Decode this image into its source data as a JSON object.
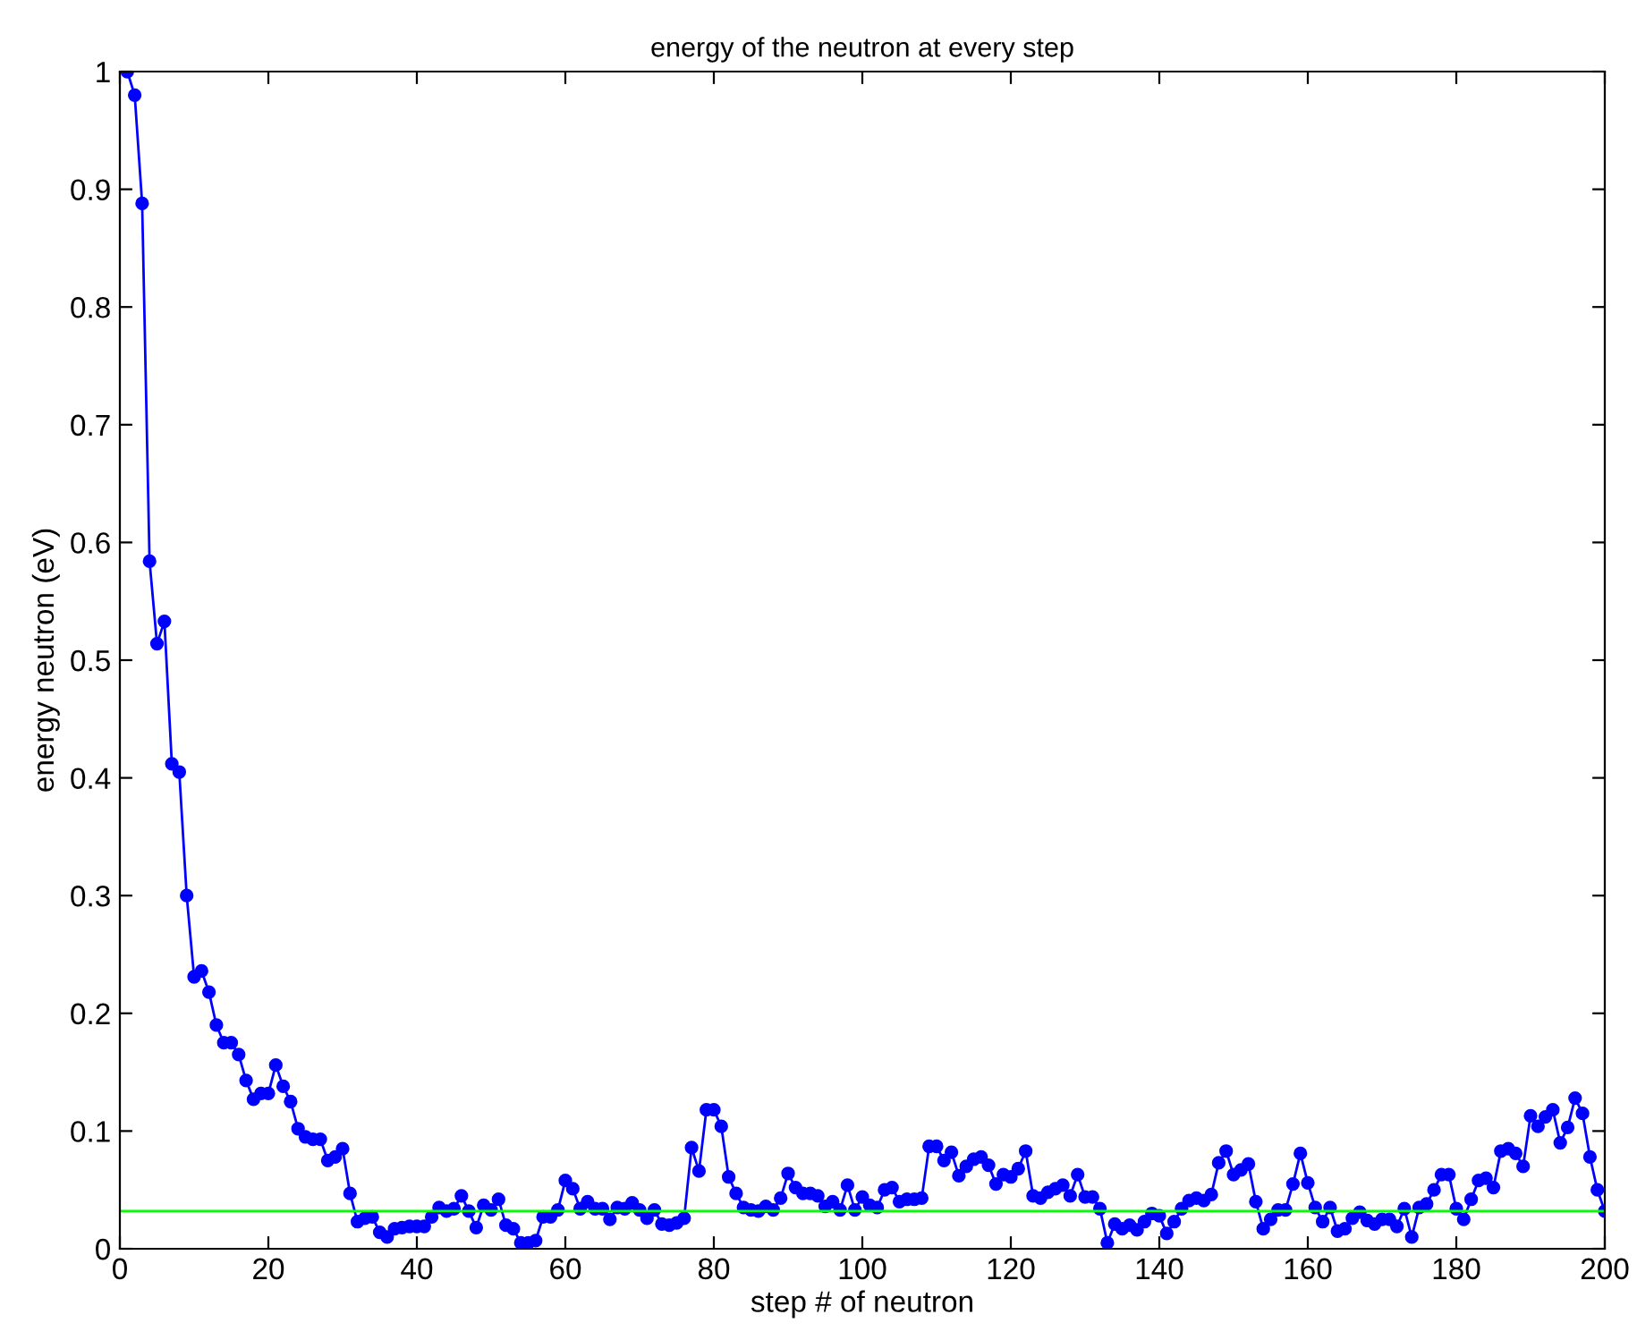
{
  "chart_data": {
    "type": "line",
    "title": "energy of the neutron at every step",
    "xlabel": "step # of neutron",
    "ylabel": "energy neutron (eV)",
    "x": [
      1,
      2,
      3,
      4,
      5,
      6,
      7,
      8,
      9,
      10,
      11,
      12,
      13,
      14,
      15,
      16,
      17,
      18,
      19,
      20,
      21,
      22,
      23,
      24,
      25,
      26,
      27,
      28,
      29,
      30,
      31,
      32,
      33,
      34,
      35,
      36,
      37,
      38,
      39,
      40,
      41,
      42,
      43,
      44,
      45,
      46,
      47,
      48,
      49,
      50,
      51,
      52,
      53,
      54,
      55,
      56,
      57,
      58,
      59,
      60,
      61,
      62,
      63,
      64,
      65,
      66,
      67,
      68,
      69,
      70,
      71,
      72,
      73,
      74,
      75,
      76,
      77,
      78,
      79,
      80,
      81,
      82,
      83,
      84,
      85,
      86,
      87,
      88,
      89,
      90,
      91,
      92,
      93,
      94,
      95,
      96,
      97,
      98,
      99,
      100,
      101,
      102,
      103,
      104,
      105,
      106,
      107,
      108,
      109,
      110,
      111,
      112,
      113,
      114,
      115,
      116,
      117,
      118,
      119,
      120,
      121,
      122,
      123,
      124,
      125,
      126,
      127,
      128,
      129,
      130,
      131,
      132,
      133,
      134,
      135,
      136,
      137,
      138,
      139,
      140,
      141,
      142,
      143,
      144,
      145,
      146,
      147,
      148,
      149,
      150,
      151,
      152,
      153,
      154,
      155,
      156,
      157,
      158,
      159,
      160,
      161,
      162,
      163,
      164,
      165,
      166,
      167,
      168,
      169,
      170,
      171,
      172,
      173,
      174,
      175,
      176,
      177,
      178,
      179,
      180,
      181,
      182,
      183,
      184,
      185,
      186,
      187,
      188,
      189,
      190,
      191,
      192,
      193,
      194,
      195,
      196,
      197,
      198,
      199,
      200
    ],
    "series": [
      {
        "color": "#0000ff",
        "values": [
          1.0,
          0.98,
          0.888,
          0.584,
          0.514,
          0.533,
          0.412,
          0.405,
          0.3,
          0.231,
          0.236,
          0.218,
          0.19,
          0.175,
          0.175,
          0.165,
          0.143,
          0.127,
          0.132,
          0.132,
          0.156,
          0.138,
          0.125,
          0.102,
          0.095,
          0.093,
          0.093,
          0.075,
          0.078,
          0.085,
          0.047,
          0.023,
          0.026,
          0.027,
          0.014,
          0.01,
          0.017,
          0.018,
          0.019,
          0.019,
          0.019,
          0.027,
          0.035,
          0.032,
          0.034,
          0.045,
          0.032,
          0.018,
          0.037,
          0.033,
          0.042,
          0.02,
          0.017,
          0.005,
          0.005,
          0.007,
          0.027,
          0.027,
          0.033,
          0.058,
          0.051,
          0.034,
          0.04,
          0.034,
          0.034,
          0.025,
          0.035,
          0.034,
          0.039,
          0.033,
          0.026,
          0.033,
          0.021,
          0.02,
          0.022,
          0.026,
          0.086,
          0.066,
          0.118,
          0.118,
          0.104,
          0.061,
          0.047,
          0.035,
          0.033,
          0.032,
          0.036,
          0.033,
          0.043,
          0.064,
          0.052,
          0.047,
          0.047,
          0.045,
          0.036,
          0.04,
          0.033,
          0.054,
          0.033,
          0.044,
          0.037,
          0.035,
          0.05,
          0.052,
          0.04,
          0.042,
          0.042,
          0.043,
          0.087,
          0.087,
          0.075,
          0.082,
          0.062,
          0.07,
          0.076,
          0.078,
          0.071,
          0.055,
          0.063,
          0.061,
          0.068,
          0.083,
          0.045,
          0.043,
          0.048,
          0.051,
          0.054,
          0.045,
          0.063,
          0.044,
          0.044,
          0.034,
          0.005,
          0.021,
          0.017,
          0.02,
          0.016,
          0.023,
          0.03,
          0.028,
          0.013,
          0.023,
          0.034,
          0.041,
          0.043,
          0.041,
          0.046,
          0.073,
          0.083,
          0.063,
          0.067,
          0.072,
          0.04,
          0.017,
          0.025,
          0.033,
          0.033,
          0.055,
          0.081,
          0.056,
          0.035,
          0.023,
          0.035,
          0.015,
          0.017,
          0.026,
          0.031,
          0.024,
          0.021,
          0.025,
          0.025,
          0.019,
          0.034,
          0.01,
          0.035,
          0.038,
          0.05,
          0.063,
          0.063,
          0.034,
          0.025,
          0.042,
          0.058,
          0.06,
          0.052,
          0.083,
          0.085,
          0.081,
          0.07,
          0.113,
          0.104,
          0.112,
          0.118,
          0.09,
          0.103,
          0.128,
          0.115,
          0.078,
          0.05,
          0.032
        ]
      }
    ],
    "xlim": [
      0,
      200
    ],
    "ylim": [
      0,
      1
    ],
    "xticks": [
      0,
      20,
      40,
      60,
      80,
      100,
      120,
      140,
      160,
      180,
      200
    ],
    "yticks": [
      0,
      {
        "value": 0.1,
        "label": "0.1"
      },
      {
        "value": 0.2,
        "label": "0.2"
      },
      {
        "value": 0.3,
        "label": "0.3"
      },
      {
        "value": 0.4,
        "label": "0.4"
      },
      {
        "value": 0.5,
        "label": "0.5"
      },
      {
        "value": 0.6,
        "label": "0.6"
      },
      {
        "value": 0.7,
        "label": "0.7"
      },
      {
        "value": 0.8,
        "label": "0.8"
      },
      {
        "value": 0.9,
        "label": "0.9"
      },
      1
    ],
    "ref_lines": [
      {
        "axis": "y",
        "value": 0.032,
        "color": "#00ff00"
      }
    ],
    "marker": "circle",
    "line_style": "solid",
    "grid": false,
    "legend": false
  }
}
